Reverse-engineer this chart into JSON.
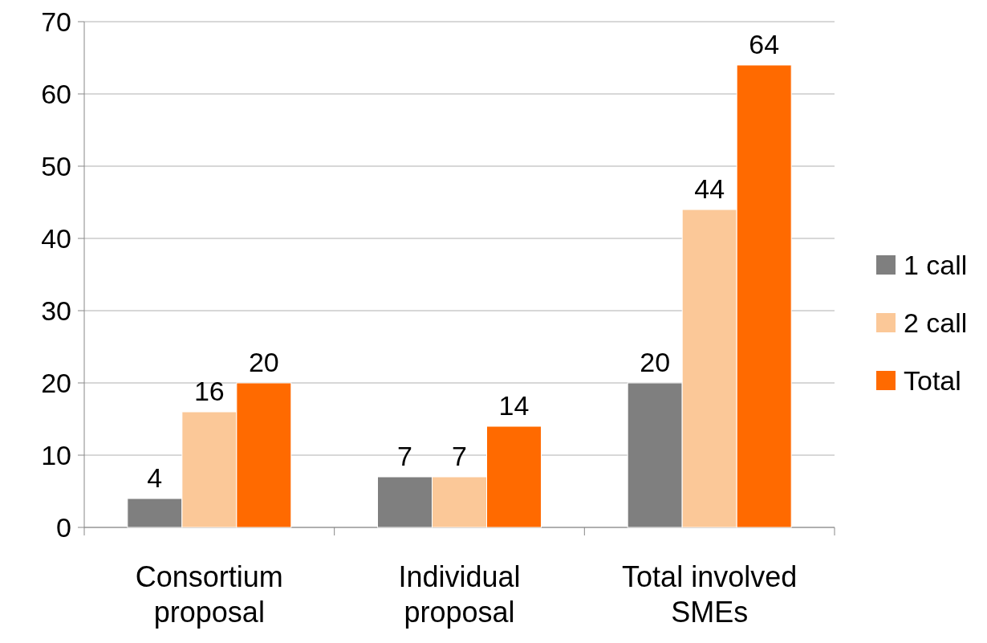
{
  "chart_data": {
    "type": "bar",
    "categories": [
      "Consortium proposal",
      "Individual proposal",
      "Total involved SMEs"
    ],
    "series": [
      {
        "name": "1 call",
        "color": "#7f7f7f",
        "values": [
          4,
          7,
          20
        ]
      },
      {
        "name": "2 call",
        "color": "#fbc898",
        "values": [
          16,
          7,
          44
        ]
      },
      {
        "name": "Total",
        "color": "#ff6a00",
        "values": [
          20,
          14,
          64
        ]
      }
    ],
    "ylim": [
      0,
      70
    ],
    "yticks": [
      0,
      10,
      20,
      30,
      40,
      50,
      60,
      70
    ],
    "grid": "y",
    "legend": "right",
    "data_labels": true
  }
}
